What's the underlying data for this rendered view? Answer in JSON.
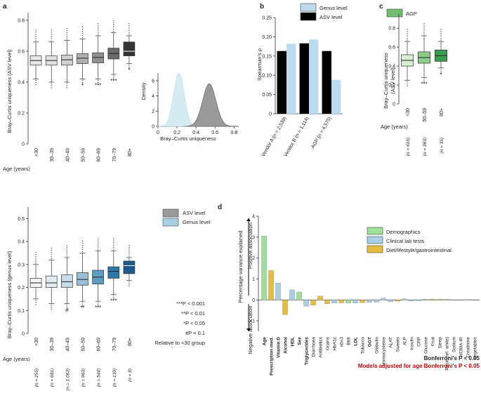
{
  "panels": {
    "a": "a",
    "b": "b",
    "c": "c",
    "d": "d"
  },
  "chart_data": [
    {
      "id": "a-top",
      "type": "box",
      "ylabel": "Bray–Curtis uniqueness (ASV level)",
      "xlabel_title": "Age (years)",
      "categories": [
        "<30",
        "30–39",
        "40–49",
        "50–59",
        "60–69",
        "70–79",
        "80+"
      ],
      "ylim": [
        0,
        0.85
      ],
      "yticks": [
        "0",
        "0.2",
        "0.4",
        "0.6",
        "0.8"
      ],
      "boxes": [
        {
          "q1": 0.51,
          "med": 0.54,
          "q3": 0.57,
          "lo": 0.42,
          "hi": 0.66,
          "color": "#e8e8e8",
          "sig": ""
        },
        {
          "q1": 0.51,
          "med": 0.54,
          "q3": 0.57,
          "lo": 0.4,
          "hi": 0.66,
          "color": "#e0e0e0",
          "sig": ""
        },
        {
          "q1": 0.51,
          "med": 0.545,
          "q3": 0.575,
          "lo": 0.4,
          "hi": 0.67,
          "color": "#d0d0d0",
          "sig": ""
        },
        {
          "q1": 0.52,
          "med": 0.555,
          "q3": 0.585,
          "lo": 0.42,
          "hi": 0.68,
          "color": "#b0b0b0",
          "sig": "*"
        },
        {
          "q1": 0.525,
          "med": 0.56,
          "q3": 0.59,
          "lo": 0.42,
          "hi": 0.7,
          "color": "#909090",
          "sig": "***"
        },
        {
          "q1": 0.55,
          "med": 0.585,
          "q3": 0.62,
          "lo": 0.45,
          "hi": 0.72,
          "color": "#6a6a6a",
          "sig": "***"
        },
        {
          "q1": 0.57,
          "med": 0.6,
          "q3": 0.66,
          "lo": 0.52,
          "hi": 0.7,
          "color": "#333333",
          "sig": "*"
        }
      ]
    },
    {
      "id": "a-density",
      "type": "area",
      "ylabel": "Density",
      "xlabel": "Bray–Curtis uniqueness",
      "xticks": [
        "0",
        "0.2",
        "0.4",
        "0.6",
        "0.8"
      ],
      "yticks": [
        "0",
        "2",
        "4",
        "6"
      ],
      "xlim": [
        0,
        0.85
      ],
      "ylim": [
        0,
        7
      ],
      "series": [
        {
          "mean": 0.22,
          "sd": 0.056,
          "peak": 7.0,
          "color": "#d6ecf3"
        },
        {
          "mean": 0.54,
          "sd": 0.07,
          "peak": 5.6,
          "color": "#9a9a9a"
        }
      ]
    },
    {
      "id": "a-bottom",
      "type": "box",
      "ylabel": "Bray–Curtis uniqueness (genus level)",
      "xlabel_title": "Age (years)",
      "categories": [
        "<30",
        "30–39",
        "40–49",
        "50–59",
        "60–69",
        "70–79",
        "80+"
      ],
      "ns": [
        "(n = 255)",
        "(n = 681)",
        "(n = 1,063)",
        "(n = 963)",
        "(n = 544)",
        "(n = 139)",
        "(n = 8)"
      ],
      "ylim": [
        0,
        0.55
      ],
      "yticks": [
        "0",
        "0.1",
        "0.2",
        "0.3",
        "0.4",
        "0.5"
      ],
      "boxes": [
        {
          "q1": 0.2,
          "med": 0.22,
          "q3": 0.24,
          "lo": 0.15,
          "hi": 0.3,
          "color": "#f4f4f4",
          "sig": ""
        },
        {
          "q1": 0.2,
          "med": 0.22,
          "q3": 0.25,
          "lo": 0.13,
          "hi": 0.32,
          "color": "#e2edf3",
          "sig": ""
        },
        {
          "q1": 0.2,
          "med": 0.225,
          "q3": 0.255,
          "lo": 0.13,
          "hi": 0.33,
          "color": "#c7dce8",
          "sig": "#"
        },
        {
          "q1": 0.21,
          "med": 0.235,
          "q3": 0.265,
          "lo": 0.14,
          "hi": 0.35,
          "color": "#98c0d6",
          "sig": "**"
        },
        {
          "q1": 0.215,
          "med": 0.245,
          "q3": 0.275,
          "lo": 0.14,
          "hi": 0.36,
          "color": "#5d9cc0",
          "sig": "***"
        },
        {
          "q1": 0.24,
          "med": 0.27,
          "q3": 0.29,
          "lo": 0.17,
          "hi": 0.36,
          "color": "#2f79a8",
          "sig": "***"
        },
        {
          "q1": 0.26,
          "med": 0.295,
          "q3": 0.315,
          "lo": 0.23,
          "hi": 0.33,
          "color": "#1b5a8e",
          "sig": ""
        }
      ]
    },
    {
      "id": "b",
      "type": "bar",
      "ylabel": "Spearman's ρ",
      "categories": [
        "Vendor A (n = 2,539)",
        "Vendor B (n = 1,114)",
        "AGP (n = 4,575)"
      ],
      "series": [
        {
          "name": "ASV level",
          "values": [
            0.163,
            0.183,
            0.163
          ],
          "color": "#000000"
        },
        {
          "name": "Genus level",
          "values": [
            0.182,
            0.193,
            0.088
          ],
          "color": "#bcdcee"
        }
      ],
      "ylim": [
        0,
        0.25
      ],
      "yticks": [
        "0",
        "0.05",
        "0.10",
        "0.15",
        "0.20",
        "0.25"
      ]
    },
    {
      "id": "c",
      "type": "box",
      "legend": "AGP",
      "ylabel": "Bray–Curtis uniqueness (ASV level)",
      "xlabel_title": "Age (years)",
      "categories": [
        "<30",
        "50–59",
        "80+"
      ],
      "ns": [
        "(n = 616)",
        "(n = 963)",
        "(n = 35)"
      ],
      "ylim": [
        0,
        0.95
      ],
      "yticks": [
        "0",
        "0.2",
        "0.4",
        "0.6",
        "0.8"
      ],
      "boxes": [
        {
          "q1": 0.4,
          "med": 0.46,
          "q3": 0.52,
          "lo": 0.25,
          "hi": 0.66,
          "color": "#d6efd2",
          "sig": ""
        },
        {
          "q1": 0.43,
          "med": 0.49,
          "q3": 0.55,
          "lo": 0.28,
          "hi": 0.72,
          "color": "#8ccc8a",
          "sig": "***"
        },
        {
          "q1": 0.45,
          "med": 0.51,
          "q3": 0.57,
          "lo": 0.38,
          "hi": 0.66,
          "color": "#3a9e4e",
          "sig": "*"
        }
      ]
    },
    {
      "id": "d",
      "type": "bar",
      "ylabel": "Percentage variance explained",
      "ylim": [
        -1.6,
        4
      ],
      "yticks": [
        "4",
        "3",
        "2",
        "1",
        "0",
        "−1"
      ],
      "positive_label": "Positive association",
      "negative_label": "Negative association",
      "legend": [
        {
          "name": "Demographics",
          "color": "#9ee09a"
        },
        {
          "name": "Clinical lab tests",
          "color": "#a9cfe4"
        },
        {
          "name": "Diet/lifestyle/gastrointestinal",
          "color": "#e6bd3c"
        }
      ],
      "categories": [
        "Age",
        "Prescription med.",
        "Vitamin D",
        "Alcohol",
        "HDL",
        "Sex",
        "Triglycerides",
        "Diarrhoea",
        "Antibiotics",
        "Grains",
        "HbA1c",
        "n6n3",
        "BMI",
        "LDL",
        "Tobacco",
        "GGT",
        "Globulin",
        "Homocysteine",
        "ALAT",
        "Sweets",
        "ALP",
        "Insulin",
        "CRP",
        "Glucose",
        "Fruit",
        "Sleep",
        "Race (ref. white)",
        "Sodium",
        "HOMA-IR",
        "Creatinine",
        "Vegetables"
      ],
      "values": [
        3.05,
        1.4,
        0.8,
        -0.7,
        0.48,
        0.38,
        -0.3,
        -0.25,
        0.18,
        -0.18,
        -0.15,
        -0.14,
        -0.15,
        -0.15,
        -0.13,
        -0.12,
        -0.11,
        0.09,
        -0.08,
        -0.06,
        0.05,
        -0.05,
        -0.04,
        0.04,
        0.04,
        0.03,
        0.03,
        -0.02,
        -0.02,
        0.02,
        -0.02
      ],
      "groups": [
        "dem",
        "diet",
        "clin",
        "diet",
        "clin",
        "dem",
        "clin",
        "diet",
        "diet",
        "diet",
        "clin",
        "diet",
        "dem",
        "clin",
        "diet",
        "clin",
        "clin",
        "clin",
        "clin",
        "diet",
        "clin",
        "clin",
        "clin",
        "clin",
        "diet",
        "diet",
        "dem",
        "clin",
        "clin",
        "clin",
        "diet"
      ],
      "label_style": [
        "bold",
        "bold",
        "red",
        "red",
        "bold",
        "red",
        "red",
        "",
        "",
        "",
        "",
        "",
        "",
        "red",
        "",
        "red",
        "",
        "",
        "",
        "",
        "",
        "",
        "",
        "",
        "",
        "",
        "",
        "",
        "",
        "",
        ""
      ],
      "note1": "Bonferroni's P < 0.05",
      "note2": "Models adjusted for age Bonferroni's P < 0.05"
    }
  ],
  "sig_legend": {
    "a_top_legend": [
      "ASV level",
      "Genus level"
    ],
    "lines": [
      "***P < 0.001",
      "**P < 0.01",
      "*P < 0.05",
      "#P < 0.1"
    ],
    "relative": "Relative to <30 group"
  }
}
